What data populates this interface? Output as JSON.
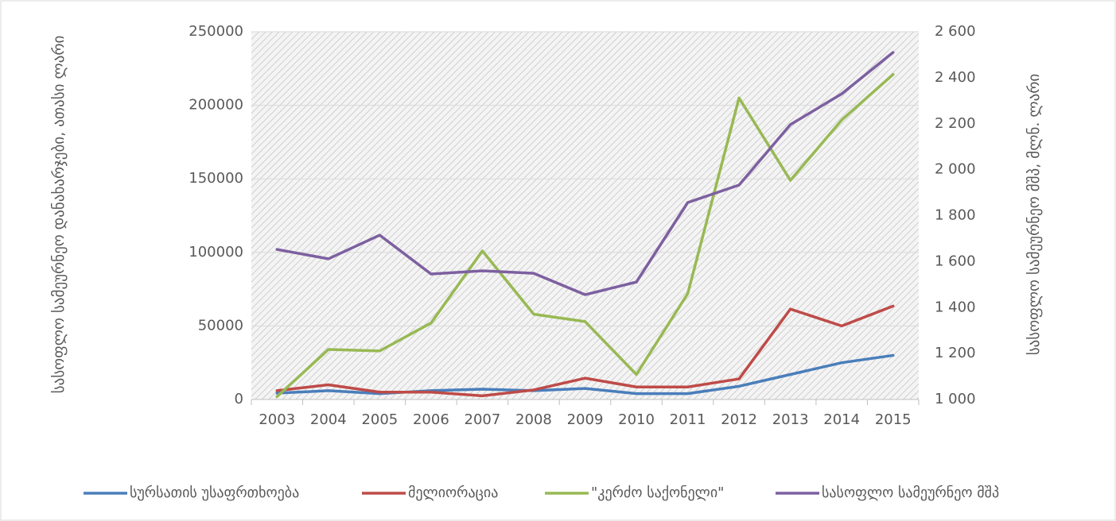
{
  "chart_data": {
    "type": "line",
    "categories": [
      "2003",
      "2004",
      "2005",
      "2006",
      "2007",
      "2008",
      "2009",
      "2010",
      "2011",
      "2012",
      "2013",
      "2014",
      "2015"
    ],
    "series": [
      {
        "name": "სურსათის უსაფრთხოება",
        "color": "#4a7ebb",
        "values": [
          4300,
          6000,
          4000,
          6000,
          7000,
          6000,
          7500,
          4000,
          4000,
          9000,
          17000,
          25000,
          30000
        ]
      },
      {
        "name": "მელიორაცია",
        "color": "#be4b48",
        "values": [
          6000,
          10000,
          5000,
          5000,
          2500,
          6500,
          14500,
          8500,
          8500,
          14000,
          61500,
          50000,
          63500
        ]
      },
      {
        "name": "\"კერძო საქონელი\"",
        "color": "#98b954",
        "values": [
          2000,
          34000,
          33000,
          52000,
          101000,
          58000,
          53000,
          17000,
          72000,
          205000,
          149000,
          190000,
          221000
        ]
      },
      {
        "name": "სასოფლო სამეურნეო მშპ",
        "color": "#7d60a0",
        "axis": "y2",
        "values": [
          1653,
          1612,
          1715,
          1546,
          1560,
          1549,
          1456,
          1511,
          1857,
          1933,
          2196,
          2330,
          2510
        ]
      }
    ],
    "ylabel": "სასოფლო სამეურნეო დანახარჯები, ათასი ლარი",
    "y2label": "სასოფლო სამეურნეო მშპ, მლნ. ლარი",
    "ylim": [
      0,
      250000
    ],
    "yticks": [
      0,
      50000,
      100000,
      150000,
      200000,
      250000
    ],
    "y2lim": [
      1000,
      2600
    ],
    "y2ticks": [
      {
        "value": 1000,
        "label": "1 000"
      },
      {
        "value": 1200,
        "label": "1 200"
      },
      {
        "value": 1400,
        "label": "1 400"
      },
      {
        "value": 1600,
        "label": "1 600"
      },
      {
        "value": 1800,
        "label": "1 800"
      },
      {
        "value": 2000,
        "label": "2 000"
      },
      {
        "value": 2200,
        "label": "2 200"
      },
      {
        "value": 2400,
        "label": "2 400"
      },
      {
        "value": 2600,
        "label": "2 600"
      }
    ],
    "grid": true,
    "legend": "bottom"
  }
}
